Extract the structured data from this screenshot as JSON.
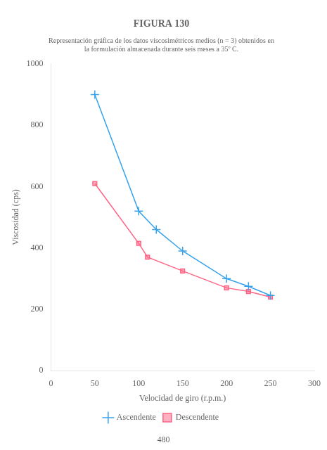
{
  "chart_data": {
    "type": "line",
    "title": "FIGURA 130",
    "subtitle": [
      "Representación gráfica de los datos viscosimétricos medios (n = 3) obtenidos en",
      "la formulación almacenada durante seis meses a 35º C."
    ],
    "xlabel": "Velocidad de giro (r.p.m.)",
    "ylabel": "Viscosidad (cps)",
    "annotations": [
      "480"
    ],
    "series": [
      {
        "name": "Ascendente",
        "x": [
          50,
          100,
          120,
          150,
          200,
          225,
          250
        ],
        "values": [
          900,
          520,
          460,
          390,
          300,
          275,
          245
        ],
        "marker": "plus"
      },
      {
        "name": "Descendente",
        "x": [
          50,
          100,
          110,
          150,
          200,
          225,
          250
        ],
        "values": [
          610,
          415,
          370,
          325,
          270,
          258,
          240
        ],
        "marker": "square"
      }
    ],
    "xlim": [
      0,
      300
    ],
    "ylim": [
      0,
      1000
    ],
    "xticks": [
      0,
      50,
      100,
      150,
      200,
      250,
      300
    ],
    "yticks": [
      0,
      200,
      400,
      600,
      800,
      1000
    ],
    "legend": "bottom",
    "grid": false
  }
}
